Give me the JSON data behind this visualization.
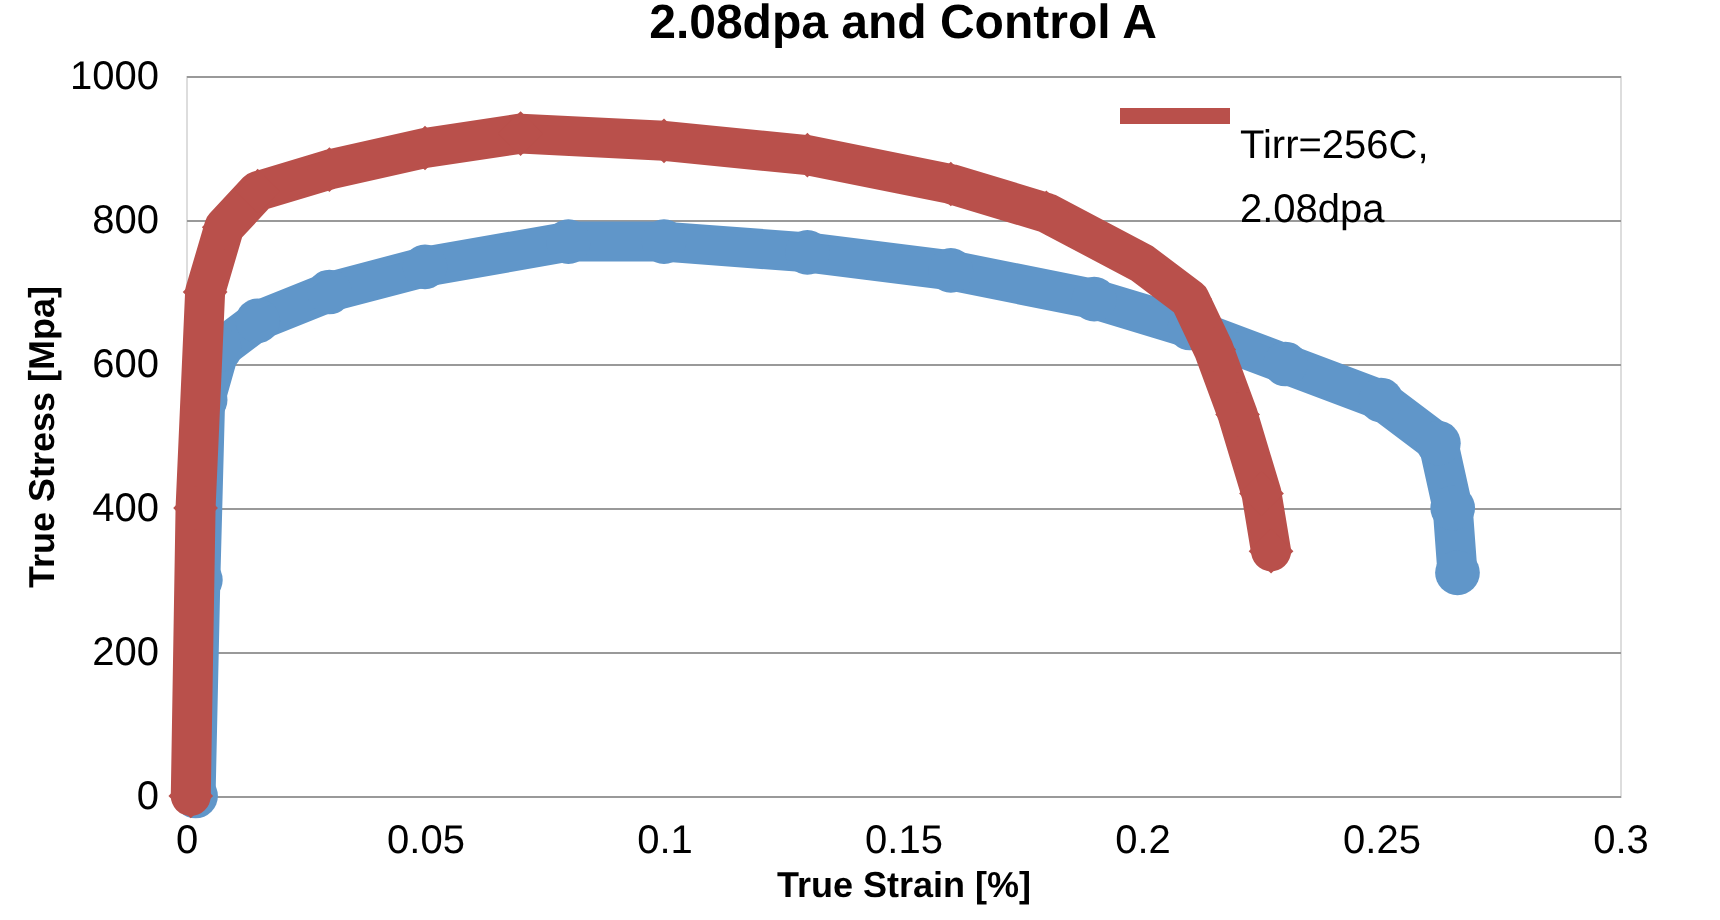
{
  "chart_data": {
    "type": "line",
    "title": "2.08dpa and Control A",
    "xlabel": "True Strain [%]",
    "ylabel": "True Stress [Mpa]",
    "xlim": [
      0,
      0.3
    ],
    "xticks": [
      0,
      0.05,
      0.1,
      0.15,
      0.2,
      0.25,
      0.3
    ],
    "ylim": [
      0,
      1000
    ],
    "yticks": [
      0,
      200,
      400,
      600,
      800,
      1000
    ],
    "grid": "y",
    "legend": "top right",
    "series": [
      {
        "color": "#6096c9",
        "marker": "circle",
        "x": [
          0.002,
          0.003,
          0.004,
          0.007,
          0.015,
          0.03,
          0.05,
          0.08,
          0.1,
          0.13,
          0.16,
          0.19,
          0.21,
          0.23,
          0.25,
          0.262,
          0.265,
          0.266
        ],
        "values": [
          0,
          300,
          550,
          620,
          660,
          700,
          735,
          770,
          770,
          755,
          730,
          690,
          650,
          600,
          550,
          490,
          400,
          310
        ]
      },
      {
        "name": "Tirr=256C, 2.08dpa",
        "color": "#b9504b",
        "marker": "diamond",
        "x": [
          0.001,
          0.002,
          0.004,
          0.008,
          0.015,
          0.03,
          0.05,
          0.07,
          0.1,
          0.13,
          0.16,
          0.18,
          0.2,
          0.21,
          0.215,
          0.22,
          0.225,
          0.227
        ],
        "values": [
          0,
          400,
          700,
          790,
          840,
          870,
          900,
          920,
          910,
          890,
          850,
          810,
          740,
          690,
          620,
          530,
          420,
          340
        ]
      }
    ]
  }
}
